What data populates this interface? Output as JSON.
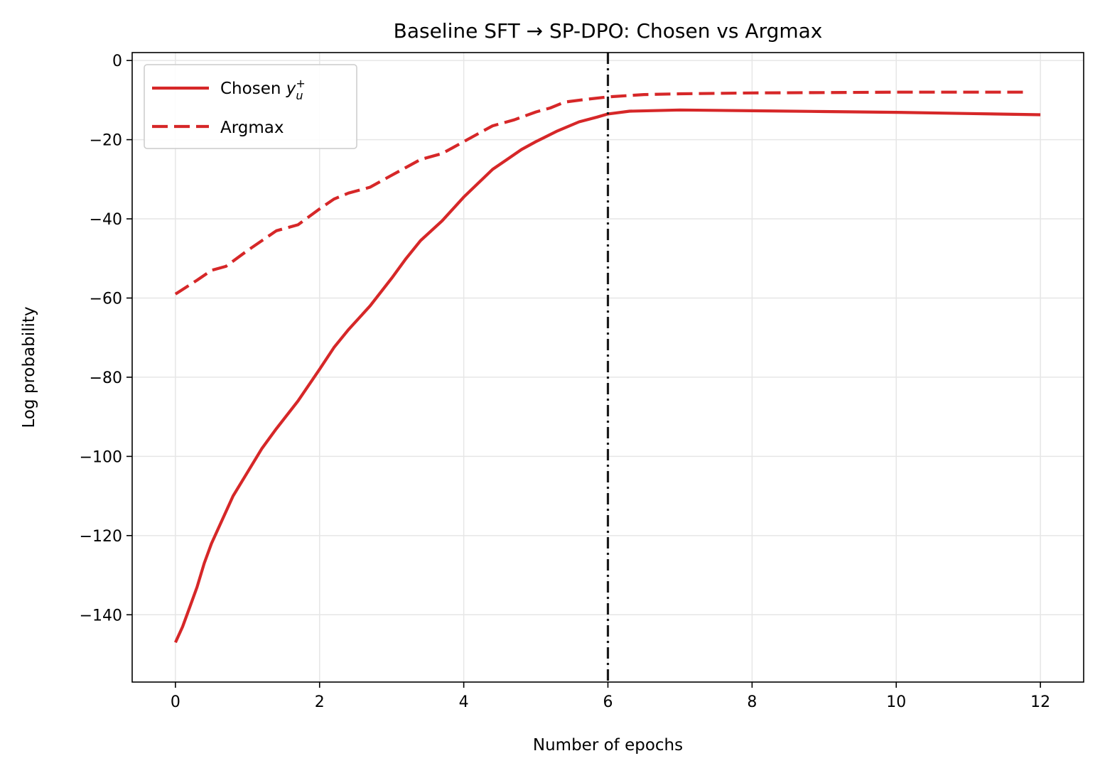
{
  "chart_data": {
    "type": "line",
    "title": "Baseline SFT → SP-DPO: Chosen vs Argmax",
    "xlabel": "Number of epochs",
    "ylabel": "Log probability",
    "xlim": [
      -0.6,
      12.6
    ],
    "ylim": [
      -157,
      2
    ],
    "xticks": [
      0,
      2,
      4,
      6,
      8,
      10,
      12
    ],
    "xtick_labels": [
      "0",
      "2",
      "4",
      "6",
      "8",
      "10",
      "12"
    ],
    "yticks": [
      0,
      -20,
      -40,
      -60,
      -80,
      -100,
      -120,
      -140
    ],
    "ytick_labels": [
      "0",
      "−20",
      "−40",
      "−60",
      "−80",
      "−100",
      "−120",
      "−140"
    ],
    "grid": true,
    "legend_position": "upper-left",
    "vline": {
      "x": 6,
      "style": "dash-dot",
      "color": "#1a1a1a"
    },
    "series": [
      {
        "name": "Chosen y_u^+",
        "legend_main": "Chosen ",
        "legend_var": "y",
        "legend_sub": "u",
        "legend_sup": "+",
        "style": "solid",
        "color": "#d62728",
        "x": [
          0,
          0.1,
          0.2,
          0.3,
          0.4,
          0.5,
          0.6,
          0.8,
          1.0,
          1.2,
          1.4,
          1.7,
          2.0,
          2.2,
          2.4,
          2.7,
          3.0,
          3.2,
          3.4,
          3.7,
          4.0,
          4.2,
          4.4,
          4.6,
          4.8,
          5.0,
          5.3,
          5.6,
          5.85,
          6.0,
          6.3,
          7.0,
          8.0,
          9.0,
          10.0,
          11.0,
          12.0
        ],
        "y": [
          -147,
          -143,
          -138,
          -133,
          -127,
          -122,
          -118,
          -110,
          -104,
          -98,
          -93,
          -86,
          -78,
          -72.5,
          -68,
          -62,
          -55,
          -50,
          -45.5,
          -40.5,
          -34.5,
          -31,
          -27.5,
          -25,
          -22.5,
          -20.5,
          -17.8,
          -15.5,
          -14.3,
          -13.5,
          -12.8,
          -12.5,
          -12.7,
          -12.9,
          -13.1,
          -13.4,
          -13.7
        ]
      },
      {
        "name": "Argmax",
        "style": "dashed",
        "color": "#d62728",
        "x": [
          0,
          0.3,
          0.5,
          0.7,
          1.0,
          1.2,
          1.4,
          1.7,
          2.0,
          2.2,
          2.4,
          2.7,
          3.0,
          3.2,
          3.4,
          3.7,
          4.0,
          4.2,
          4.4,
          4.7,
          5.0,
          5.2,
          5.4,
          5.7,
          6.0,
          6.5,
          7.0,
          8.0,
          9.0,
          10.0,
          11.0,
          11.8
        ],
        "y": [
          -59,
          -55.5,
          -53,
          -52,
          -48,
          -45.5,
          -43,
          -41.5,
          -37.5,
          -35,
          -33.5,
          -32,
          -29,
          -27,
          -25,
          -23.5,
          -20.5,
          -18.5,
          -16.5,
          -15,
          -13,
          -12,
          -10.5,
          -9.8,
          -9.2,
          -8.6,
          -8.4,
          -8.2,
          -8.1,
          -8.0,
          -8.0,
          -8.0
        ]
      }
    ]
  }
}
